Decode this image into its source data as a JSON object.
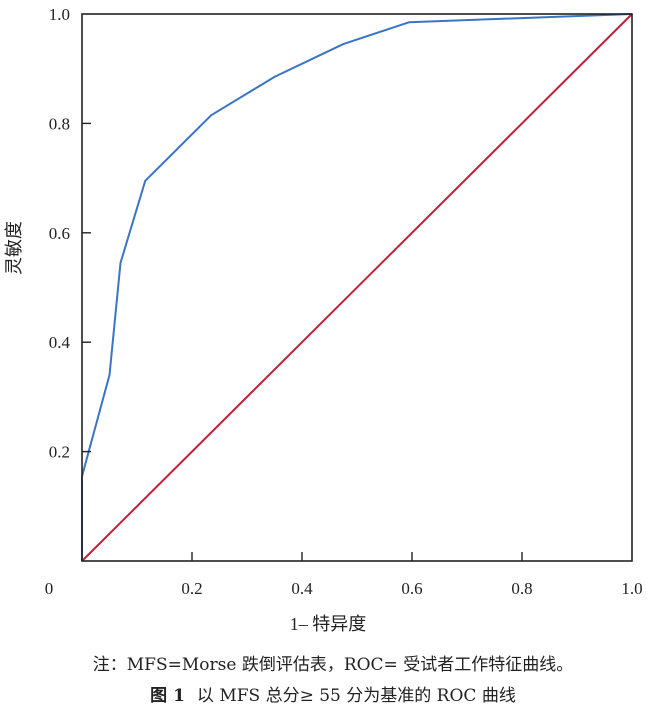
{
  "chart_data": {
    "type": "line",
    "title": "",
    "xlabel": "1– 特异度",
    "ylabel": "灵敏度",
    "xlim": [
      0,
      1
    ],
    "ylim": [
      0,
      1
    ],
    "x_origin_label": "0",
    "x_ticks": [
      {
        "value": 0.2,
        "label": "0.2"
      },
      {
        "value": 0.4,
        "label": "0.4"
      },
      {
        "value": 0.6,
        "label": "0.6"
      },
      {
        "value": 0.8,
        "label": "0.8"
      },
      {
        "value": 1.0,
        "label": "1.0"
      }
    ],
    "y_ticks": [
      {
        "value": 0.2,
        "label": "0.2"
      },
      {
        "value": 0.4,
        "label": "0.4"
      },
      {
        "value": 0.6,
        "label": "0.6"
      },
      {
        "value": 0.8,
        "label": "0.8"
      },
      {
        "value": 1.0,
        "label": "1.0"
      }
    ],
    "grid": false,
    "legend": "none",
    "series": [
      {
        "color": "#3a75c4",
        "x": [
          0,
          0,
          0.05,
          0.07,
          0.115,
          0.235,
          0.35,
          0.475,
          0.595,
          1.0
        ],
        "y": [
          0,
          0.155,
          0.34,
          0.545,
          0.695,
          0.815,
          0.885,
          0.945,
          0.985,
          1.0
        ]
      },
      {
        "color": "#c0203a",
        "x": [
          0,
          1
        ],
        "y": [
          0,
          1
        ]
      }
    ]
  },
  "notes": {
    "footnote": "注：MFS=Morse 跌倒评估表，ROC= 受试者工作特征曲线。",
    "figure_label": "图 1",
    "figure_caption": "以 MFS 总分≥ 55 分为基准的 ROC 曲线"
  }
}
